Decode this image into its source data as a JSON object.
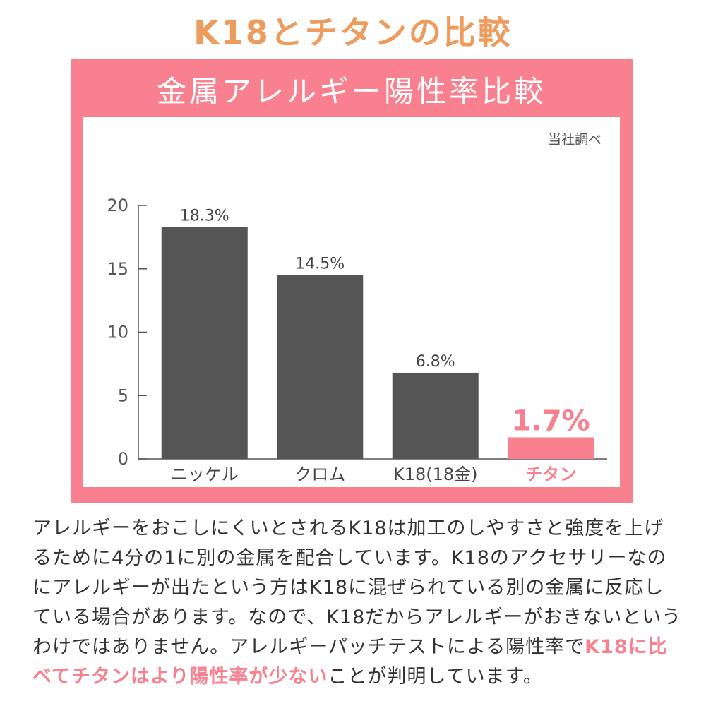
{
  "page_title": "K18とチタンの比較",
  "chart_data": {
    "type": "bar",
    "title": "金属アレルギー陽性率比較",
    "source_note": "当社調べ",
    "categories": [
      "ニッケル",
      "クロム",
      "K18(18金)",
      "チタン"
    ],
    "values": [
      18.3,
      14.5,
      6.8,
      1.7
    ],
    "data_labels": [
      "18.3%",
      "14.5%",
      "6.8%",
      "1.7%"
    ],
    "ylim": [
      0,
      20
    ],
    "yticks": [
      0,
      5,
      10,
      15,
      20
    ],
    "xlabel": "",
    "ylabel": "",
    "highlight_index": 3,
    "colors": {
      "bar": "#555555",
      "highlight": "#f9818f",
      "axis": "#555555"
    }
  },
  "description": {
    "text": "アレルギーをおこしにくいとされるK18は加工のしやすさと強度を上げるために4分の1に別の金属を配合しています。K18のアクセサリーなのにアレルギーが出たという方はK18に混ぜられている別の金属に反応している場合があります。なので、K18だからアレルギーがおきないというわけではありません。アレルギーパッチテストによる陽性率で",
    "highlight": "K18に比べてチタンはより陽性率が少ない",
    "tail": "ことが判明しています。"
  },
  "colors": {
    "title": "#ee9c5e",
    "panel": "#f9818f",
    "text": "#333333"
  }
}
